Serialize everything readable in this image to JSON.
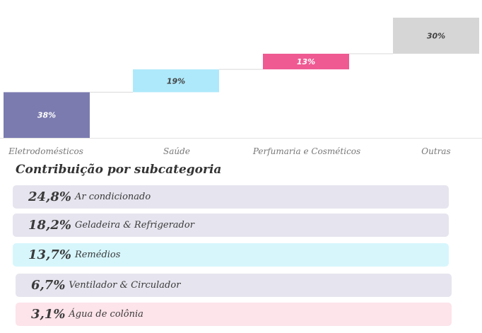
{
  "chart_data": {
    "type": "bar",
    "subtype": "waterfall",
    "categories": [
      "Eletrodomésticos",
      "Saúde",
      "Perfumaria e Cosméticos",
      "Outras"
    ],
    "values": [
      38,
      19,
      13,
      30
    ],
    "value_labels": [
      "38%",
      "19%",
      "13%",
      "30%"
    ],
    "colors": [
      "#7b7bb0",
      "#aee9fb",
      "#ef5a93",
      "#d6d6d6"
    ],
    "label_colors": [
      "#ffffff",
      "#444444",
      "#ffffff",
      "#444444"
    ],
    "ylim": [
      0,
      100
    ],
    "grid": false,
    "legend": "none"
  },
  "contributions": {
    "title": "Contribuição por subcategoria",
    "items": [
      {
        "pct": "24,8%",
        "label": "Ar condicionado",
        "color": "#e6e4ee"
      },
      {
        "pct": "18,2%",
        "label": "Geladeira & Refrigerador",
        "color": "#e6e4ee"
      },
      {
        "pct": "13,7%",
        "label": "Remédios",
        "color": "#d6f6fc"
      },
      {
        "pct": "6,7%",
        "label": "Ventilador & Circulador",
        "color": "#e6e4ee"
      },
      {
        "pct": "3,1%",
        "label": "Água de colônia",
        "color": "#fde3ea"
      }
    ]
  }
}
